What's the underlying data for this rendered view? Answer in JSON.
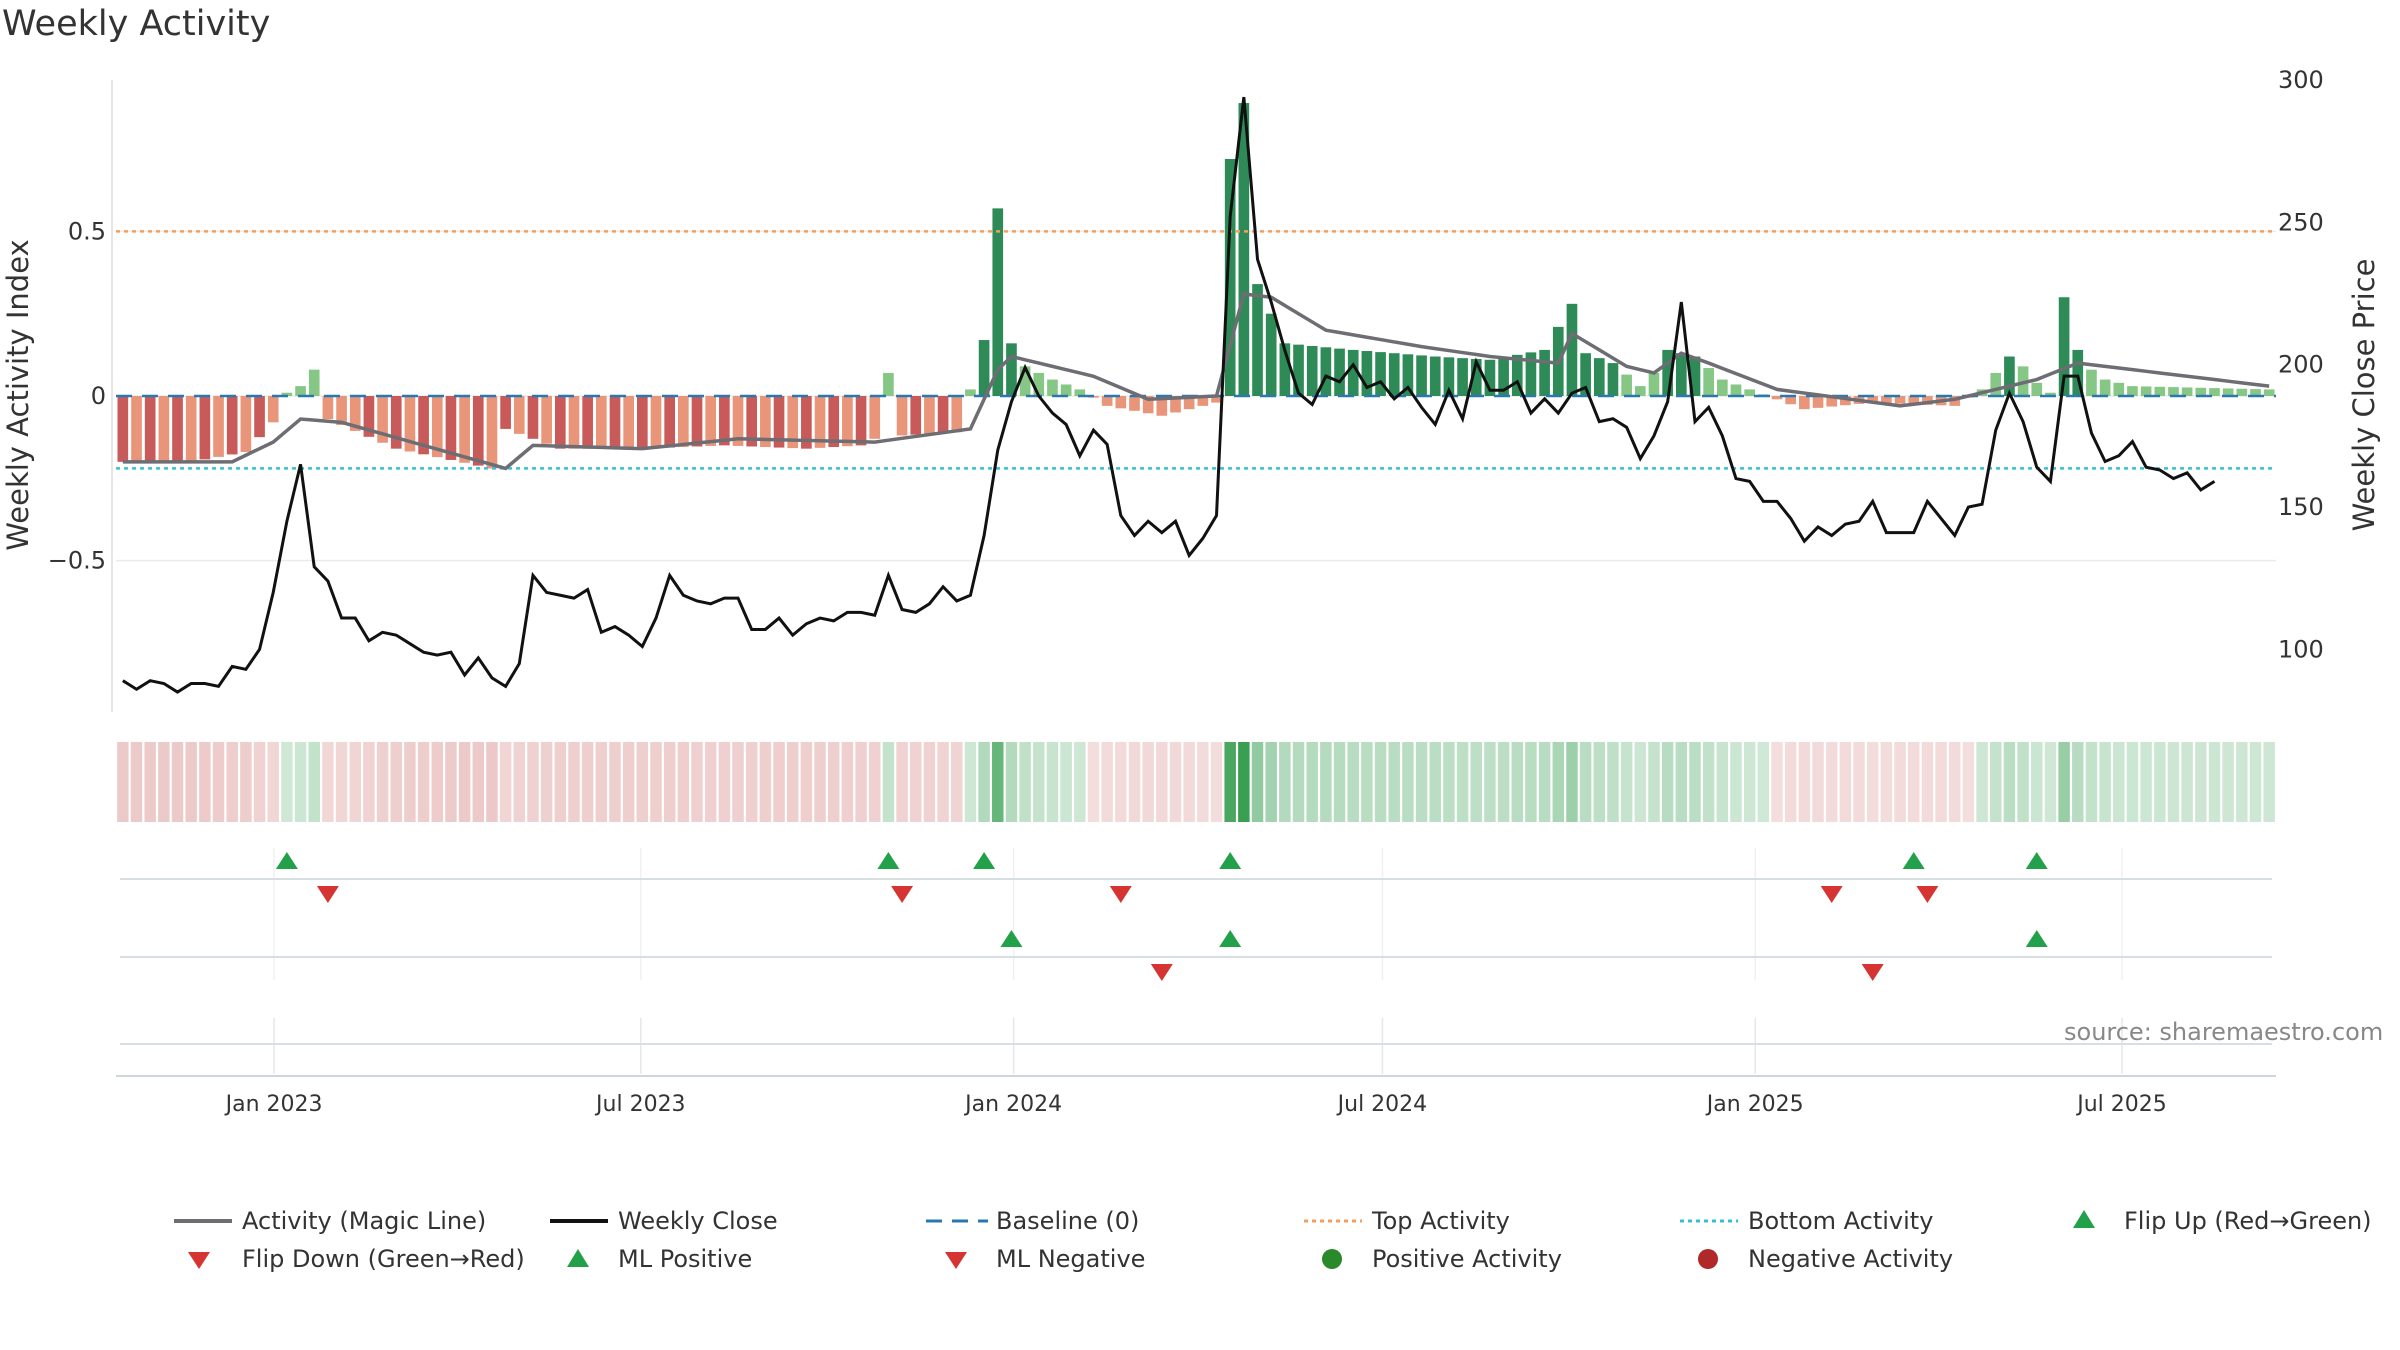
{
  "title": "Weekly Activity",
  "source": "source: sharemaestro.com",
  "colors": {
    "magic_line": "#6d6d73",
    "close": "#111111",
    "baseline": "#2a78b0",
    "top": "#f0a060",
    "bottom": "#35c0d8",
    "pos_strong": "#2e8b57",
    "pos_weak": "#86c786",
    "neg_strong": "#c85a5a",
    "neg_weak": "#e8957a",
    "flip_up": "#22a04a",
    "flip_down": "#d63333"
  },
  "chart_data": {
    "type": "bar+line",
    "title": "Weekly Activity",
    "ylabel_left": "Weekly Activity Index",
    "ylabel_right": "Weekly Close Price",
    "yticks_left": [
      0.5,
      0,
      -0.5
    ],
    "ytick_labels_left": [
      "0.5",
      "0",
      "−0.5"
    ],
    "ylim_left": [
      -0.96,
      0.96
    ],
    "yticks_right": [
      300,
      250,
      200,
      150,
      100
    ],
    "ylim_right": [
      78,
      300
    ],
    "top_activity": 0.5,
    "bottom_activity": -0.22,
    "baseline": 0,
    "x_start": "2022-10-15",
    "x_end": "2025-09-15",
    "xticks": [
      {
        "date": "2023-01-01",
        "label": "Jan 2023"
      },
      {
        "date": "2023-07-01",
        "label": "Jul 2023"
      },
      {
        "date": "2024-01-01",
        "label": "Jan 2024"
      },
      {
        "date": "2024-07-01",
        "label": "Jul 2024"
      },
      {
        "date": "2025-01-01",
        "label": "Jan 2025"
      },
      {
        "date": "2025-07-01",
        "label": "Jul 2025"
      }
    ],
    "activity_keys": [
      [
        0,
        -0.2
      ],
      [
        5,
        -0.2
      ],
      [
        9,
        -0.17
      ],
      [
        11,
        -0.08
      ],
      [
        12,
        0.01
      ],
      [
        13,
        0.03
      ],
      [
        14,
        0.08
      ],
      [
        15,
        -0.07
      ],
      [
        20,
        -0.16
      ],
      [
        27,
        -0.22
      ],
      [
        28,
        -0.1
      ],
      [
        32,
        -0.16
      ],
      [
        38,
        -0.16
      ],
      [
        44,
        -0.15
      ],
      [
        50,
        -0.16
      ],
      [
        54,
        -0.15
      ],
      [
        55,
        -0.13
      ],
      [
        56,
        0.07
      ],
      [
        57,
        -0.12
      ],
      [
        61,
        -0.11
      ],
      [
        62,
        0.02
      ],
      [
        63,
        0.17
      ],
      [
        64,
        0.57
      ],
      [
        65,
        0.16
      ],
      [
        66,
        0.09
      ],
      [
        68,
        0.05
      ],
      [
        70,
        0.02
      ],
      [
        72,
        -0.03
      ],
      [
        76,
        -0.06
      ],
      [
        80,
        -0.02
      ],
      [
        81,
        0.72
      ],
      [
        82,
        0.89
      ],
      [
        83,
        0.34
      ],
      [
        84,
        0.25
      ],
      [
        85,
        0.16
      ],
      [
        90,
        0.14
      ],
      [
        96,
        0.12
      ],
      [
        100,
        0.11
      ],
      [
        104,
        0.14
      ],
      [
        106,
        0.28
      ],
      [
        107,
        0.13
      ],
      [
        109,
        0.1
      ],
      [
        111,
        0.03
      ],
      [
        112,
        0.07
      ],
      [
        113,
        0.14
      ],
      [
        115,
        0.12
      ],
      [
        117,
        0.05
      ],
      [
        119,
        0.02
      ],
      [
        123,
        -0.04
      ],
      [
        128,
        -0.02
      ],
      [
        134,
        -0.03
      ],
      [
        136,
        0.02
      ],
      [
        137,
        0.07
      ],
      [
        138,
        0.12
      ],
      [
        139,
        0.09
      ],
      [
        140,
        0.04
      ],
      [
        141,
        0.01
      ],
      [
        142,
        0.3
      ],
      [
        143,
        0.14
      ],
      [
        144,
        0.08
      ],
      [
        145,
        0.05
      ],
      [
        147,
        0.03
      ],
      [
        157,
        0.02
      ]
    ],
    "magic_keys": [
      [
        0,
        -0.2
      ],
      [
        8,
        -0.2
      ],
      [
        11,
        -0.14
      ],
      [
        13,
        -0.07
      ],
      [
        16,
        -0.08
      ],
      [
        28,
        -0.22
      ],
      [
        30,
        -0.15
      ],
      [
        38,
        -0.16
      ],
      [
        45,
        -0.13
      ],
      [
        55,
        -0.14
      ],
      [
        62,
        -0.1
      ],
      [
        64,
        0.08
      ],
      [
        65,
        0.12
      ],
      [
        71,
        0.06
      ],
      [
        75,
        -0.01
      ],
      [
        80,
        0.0
      ],
      [
        82,
        0.31
      ],
      [
        84,
        0.3
      ],
      [
        88,
        0.2
      ],
      [
        95,
        0.15
      ],
      [
        100,
        0.12
      ],
      [
        105,
        0.1
      ],
      [
        106,
        0.19
      ],
      [
        110,
        0.09
      ],
      [
        112,
        0.07
      ],
      [
        114,
        0.13
      ],
      [
        116,
        0.1
      ],
      [
        121,
        0.02
      ],
      [
        130,
        -0.03
      ],
      [
        134,
        -0.01
      ],
      [
        140,
        0.05
      ],
      [
        143,
        0.1
      ],
      [
        157,
        0.03
      ]
    ],
    "close_keys": [
      [
        0,
        89
      ],
      [
        1,
        86
      ],
      [
        2,
        89
      ],
      [
        3,
        88
      ],
      [
        4,
        85
      ],
      [
        5,
        88
      ],
      [
        6,
        88
      ],
      [
        7,
        87
      ],
      [
        8,
        94
      ],
      [
        9,
        93
      ],
      [
        10,
        100
      ],
      [
        11,
        120
      ],
      [
        12,
        145
      ],
      [
        13,
        165
      ],
      [
        14,
        129
      ],
      [
        15,
        124
      ],
      [
        16,
        111
      ],
      [
        17,
        111
      ],
      [
        18,
        103
      ],
      [
        19,
        106
      ],
      [
        20,
        105
      ],
      [
        21,
        102
      ],
      [
        22,
        99
      ],
      [
        23,
        98
      ],
      [
        24,
        99
      ],
      [
        25,
        91
      ],
      [
        26,
        97
      ],
      [
        27,
        90
      ],
      [
        28,
        87
      ],
      [
        29,
        95
      ],
      [
        30,
        126
      ],
      [
        31,
        120
      ],
      [
        32,
        119
      ],
      [
        33,
        118
      ],
      [
        34,
        121
      ],
      [
        35,
        106
      ],
      [
        36,
        108
      ],
      [
        37,
        105
      ],
      [
        38,
        101
      ],
      [
        39,
        111
      ],
      [
        40,
        126
      ],
      [
        41,
        119
      ],
      [
        42,
        117
      ],
      [
        43,
        116
      ],
      [
        44,
        118
      ],
      [
        45,
        118
      ],
      [
        46,
        107
      ],
      [
        47,
        107
      ],
      [
        48,
        111
      ],
      [
        49,
        105
      ],
      [
        50,
        109
      ],
      [
        51,
        111
      ],
      [
        52,
        110
      ],
      [
        53,
        113
      ],
      [
        54,
        113
      ],
      [
        55,
        112
      ],
      [
        56,
        126
      ],
      [
        57,
        114
      ],
      [
        58,
        113
      ],
      [
        59,
        116
      ],
      [
        60,
        122
      ],
      [
        61,
        117
      ],
      [
        62,
        119
      ],
      [
        63,
        140
      ],
      [
        64,
        170
      ],
      [
        65,
        187
      ],
      [
        66,
        199
      ],
      [
        67,
        189
      ],
      [
        68,
        183
      ],
      [
        69,
        179
      ],
      [
        70,
        168
      ],
      [
        71,
        177
      ],
      [
        72,
        172
      ],
      [
        73,
        147
      ],
      [
        74,
        140
      ],
      [
        75,
        145
      ],
      [
        76,
        141
      ],
      [
        77,
        145
      ],
      [
        78,
        133
      ],
      [
        79,
        139
      ],
      [
        80,
        147
      ],
      [
        81,
        252
      ],
      [
        82,
        294
      ],
      [
        83,
        237
      ],
      [
        84,
        222
      ],
      [
        85,
        205
      ],
      [
        86,
        190
      ],
      [
        87,
        186
      ],
      [
        88,
        196
      ],
      [
        89,
        194
      ],
      [
        90,
        200
      ],
      [
        91,
        192
      ],
      [
        92,
        194
      ],
      [
        93,
        188
      ],
      [
        94,
        192
      ],
      [
        95,
        185
      ],
      [
        96,
        179
      ],
      [
        97,
        191
      ],
      [
        98,
        181
      ],
      [
        99,
        201
      ],
      [
        100,
        191
      ],
      [
        101,
        191
      ],
      [
        102,
        194
      ],
      [
        103,
        183
      ],
      [
        104,
        188
      ],
      [
        105,
        183
      ],
      [
        106,
        190
      ],
      [
        107,
        192
      ],
      [
        108,
        180
      ],
      [
        109,
        181
      ],
      [
        110,
        178
      ],
      [
        111,
        167
      ],
      [
        112,
        175
      ],
      [
        113,
        187
      ],
      [
        114,
        222
      ],
      [
        115,
        180
      ],
      [
        116,
        185
      ],
      [
        117,
        175
      ],
      [
        118,
        160
      ],
      [
        119,
        159
      ],
      [
        120,
        152
      ],
      [
        121,
        152
      ],
      [
        122,
        146
      ],
      [
        123,
        138
      ],
      [
        124,
        143
      ],
      [
        125,
        140
      ],
      [
        126,
        144
      ],
      [
        127,
        145
      ],
      [
        128,
        152
      ],
      [
        129,
        141
      ],
      [
        130,
        141
      ],
      [
        131,
        141
      ],
      [
        132,
        152
      ],
      [
        133,
        146
      ],
      [
        134,
        140
      ],
      [
        135,
        150
      ],
      [
        136,
        151
      ],
      [
        137,
        177
      ],
      [
        138,
        190
      ],
      [
        139,
        180
      ],
      [
        140,
        164
      ],
      [
        141,
        159
      ],
      [
        142,
        196
      ],
      [
        143,
        196
      ],
      [
        144,
        176
      ],
      [
        145,
        166
      ],
      [
        146,
        168
      ],
      [
        147,
        173
      ],
      [
        148,
        164
      ],
      [
        149,
        163
      ],
      [
        150,
        160
      ],
      [
        151,
        162
      ],
      [
        152,
        156
      ],
      [
        153,
        159
      ]
    ],
    "ml_flip_up": [
      12,
      56,
      63,
      81,
      131,
      140
    ],
    "ml_flip_down": [
      15,
      57,
      73,
      125,
      132
    ],
    "state_flip_up": [
      65,
      81,
      140
    ],
    "state_flip_down": [
      76,
      128
    ],
    "legend": [
      {
        "label": "Activity (Magic Line)"
      },
      {
        "label": "Weekly Close"
      },
      {
        "label": "Baseline (0)"
      },
      {
        "label": "Top Activity"
      },
      {
        "label": "Bottom Activity"
      },
      {
        "label": "Flip Up (Red→Green)"
      },
      {
        "label": "Flip Down (Green→Red)"
      },
      {
        "label": "ML Positive"
      },
      {
        "label": "ML Negative"
      },
      {
        "label": "Positive Activity"
      },
      {
        "label": "Negative Activity"
      }
    ]
  }
}
